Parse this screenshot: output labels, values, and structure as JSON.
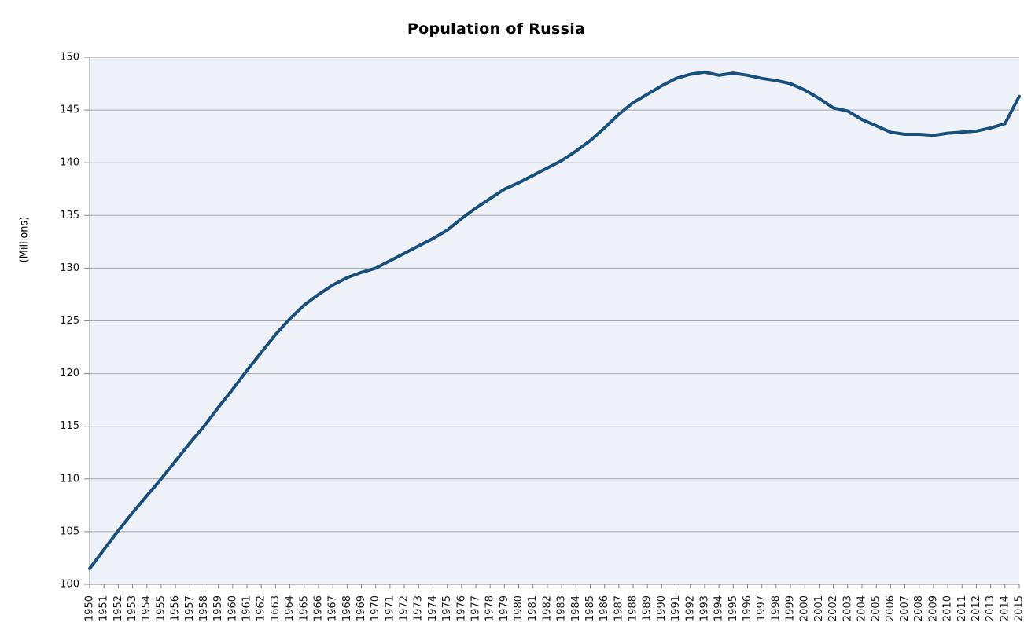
{
  "chart_data": {
    "type": "line",
    "title": "Population of Russia",
    "ylabel": "(Millions)",
    "xlabel": "",
    "legend": "none",
    "grid": "horizontal-major",
    "ylim": [
      100,
      150
    ],
    "ytick_step": 5,
    "categories": [
      "1950",
      "1951",
      "1952",
      "1953",
      "1954",
      "1955",
      "1956",
      "1957",
      "1958",
      "1959",
      "1960",
      "1961",
      "1962",
      "1663",
      "1964",
      "1965",
      "1966",
      "1967",
      "1968",
      "1969",
      "1970",
      "1971",
      "1972",
      "1973",
      "1974",
      "1975",
      "1976",
      "1977",
      "1978",
      "1979",
      "1980",
      "1981",
      "1982",
      "1983",
      "1984",
      "1985",
      "1986",
      "1987",
      "1988",
      "1989",
      "1990",
      "1991",
      "1992",
      "1993",
      "1994",
      "1995",
      "1996",
      "1997",
      "1998",
      "1999",
      "2000",
      "2001",
      "2002",
      "2003",
      "2004",
      "2005",
      "2006",
      "2007",
      "2008",
      "2009",
      "2010",
      "2011",
      "2012",
      "2013",
      "2014",
      "2015"
    ],
    "series": [
      {
        "name": "Population of Russia",
        "values": [
          101.5,
          103.3,
          105.1,
          106.8,
          108.4,
          110.0,
          111.7,
          113.4,
          115.0,
          116.8,
          118.5,
          120.3,
          122.0,
          123.7,
          125.2,
          126.5,
          127.5,
          128.4,
          129.1,
          129.6,
          130.0,
          130.7,
          131.4,
          132.1,
          132.8,
          133.6,
          134.7,
          135.7,
          136.6,
          137.5,
          138.1,
          138.8,
          139.5,
          140.2,
          141.1,
          142.1,
          143.3,
          144.6,
          145.7,
          146.5,
          147.3,
          148.0,
          148.4,
          148.6,
          148.3,
          148.5,
          148.3,
          148.0,
          147.8,
          147.5,
          146.9,
          146.1,
          145.2,
          144.9,
          144.1,
          143.5,
          142.9,
          142.7,
          142.7,
          142.6,
          142.8,
          142.9,
          143.0,
          143.3,
          143.7,
          146.3
        ]
      }
    ],
    "colors": {
      "line": "#17507d",
      "plot_background": "#eef1f8",
      "gridline": "#a6a6a6",
      "axis": "#878787",
      "tick_text": "#1a1a1a",
      "page_background": "#ffffff"
    }
  }
}
